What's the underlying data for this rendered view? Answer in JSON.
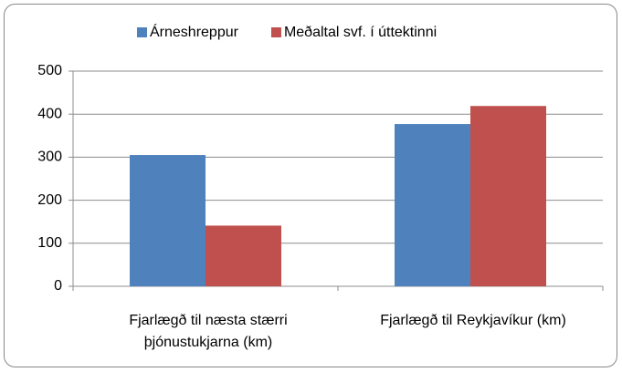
{
  "chart_data": {
    "type": "bar",
    "categories": [
      "Fjarlægð til næsta stærri þjónustukjarna (km)",
      "Fjarlægð til Reykjavíkur (km)"
    ],
    "series": [
      {
        "name": "Árneshreppur",
        "color": "#4f81bd",
        "values": [
          305,
          377
        ]
      },
      {
        "name": "Meðaltal svf. í úttektinni",
        "color": "#c0504d",
        "values": [
          141,
          419
        ]
      }
    ],
    "ylim": [
      0,
      500
    ],
    "yticks": [
      0,
      100,
      200,
      300,
      400,
      500
    ],
    "grid": true,
    "legend": "top"
  }
}
